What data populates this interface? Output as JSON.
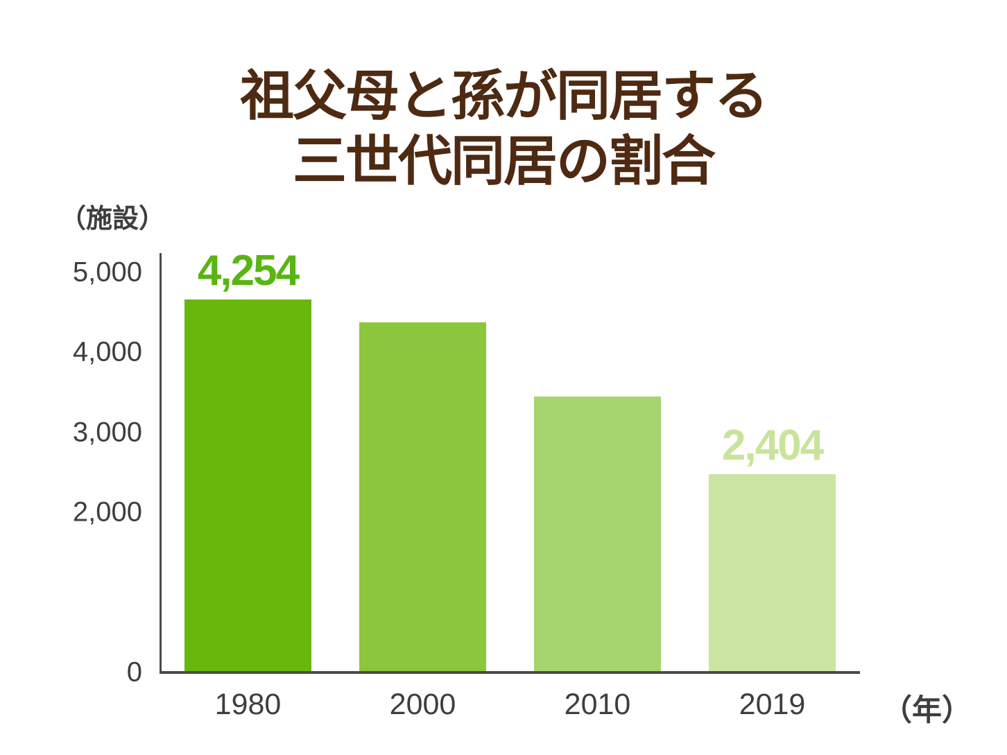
{
  "title": {
    "line1": "祖父母と孫が同居する",
    "line2": "三世代同居の割合",
    "color": "#4e2a12"
  },
  "chart_data": {
    "type": "bar",
    "title": "祖父母と孫が同居する 三世代同居の割合",
    "y_unit_label": "（施設）",
    "x_unit_label": "（年）",
    "categories": [
      "1980",
      "2000",
      "2010",
      "2019"
    ],
    "values": [
      4254,
      4000,
      3200,
      2404
    ],
    "value_label_texts": [
      "4,254",
      null,
      null,
      "2,404"
    ],
    "value_label_colors": [
      "#58b512",
      null,
      null,
      "#c8e49c"
    ],
    "bar_colors": [
      "#68b70d",
      "#8cc63c",
      "#a6d46e",
      "#cbe5a3"
    ],
    "drawn_height_ratios": [
      1.0,
      0.938,
      0.739,
      0.53
    ],
    "y_ticks": [
      {
        "label": "5,000",
        "value": 5000
      },
      {
        "label": "4,000",
        "value": 4000
      },
      {
        "label": "3,000",
        "value": 3000
      },
      {
        "label": "2,000",
        "value": 2000
      },
      {
        "label": "0",
        "value": 0
      }
    ],
    "ylim": [
      0,
      5000
    ],
    "grid": false,
    "legend": false,
    "axis_color": "#4a4a4a",
    "tick_text_color": "#3e3e3e"
  }
}
